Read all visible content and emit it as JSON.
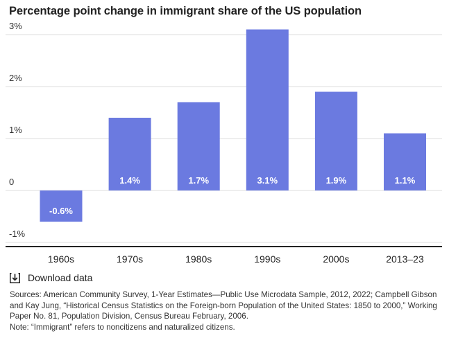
{
  "title": "Percentage point change in immigrant share of the US population",
  "chart_data": {
    "type": "bar",
    "title": "Percentage point change in immigrant share of the US population",
    "categories": [
      "1960s",
      "1970s",
      "1980s",
      "1990s",
      "2000s",
      "2013–23"
    ],
    "values": [
      -0.6,
      1.4,
      1.7,
      3.1,
      1.9,
      1.1
    ],
    "value_labels": [
      "-0.6%",
      "1.4%",
      "1.7%",
      "3.1%",
      "1.9%",
      "1.1%"
    ],
    "yticks": [
      -1,
      0,
      1,
      2,
      3
    ],
    "ytick_labels": [
      "-1%",
      "0",
      "1%",
      "2%",
      "3%"
    ],
    "ylim": [
      -1,
      3
    ],
    "xlabel": "",
    "ylabel": "",
    "grid": true,
    "bar_color": "#6b7ae0",
    "grid_color": "#dddddd",
    "axis_color": "#222222"
  },
  "download": {
    "label": "Download data",
    "icon": "download-icon"
  },
  "sources": {
    "text": "Sources: American Community Survey, 1-Year Estimates—Public Use Microdata Sample, 2012, 2022; Campbell Gibson and Kay Jung, “Historical Census Statistics on the Foreign-born Population of the United States: 1850 to 2000,” Working Paper No. 81, Population Division, Census Bureau February, 2006.",
    "note": "Note: “Immigrant” refers to noncitizens and naturalized citizens."
  }
}
